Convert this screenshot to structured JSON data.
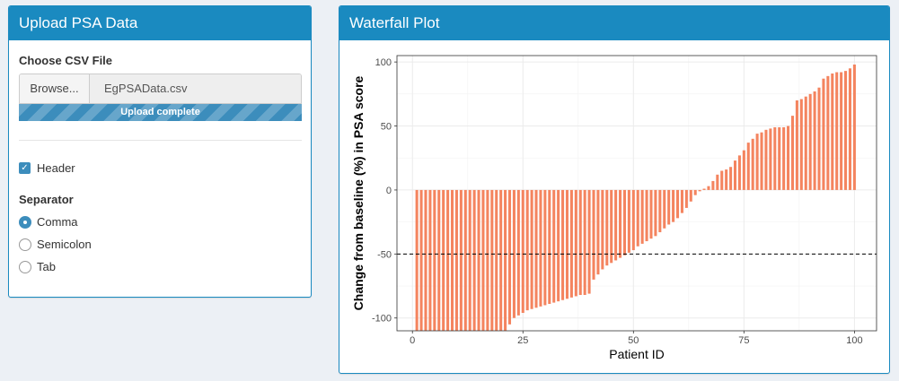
{
  "upload_panel": {
    "title": "Upload PSA Data",
    "file_label": "Choose CSV File",
    "browse_label": "Browse...",
    "file_name": "EgPSAData.csv",
    "progress_text": "Upload complete",
    "progress": 1.0,
    "header_label": "Header",
    "header_checked": true,
    "separator_label": "Separator",
    "separator_options": [
      "Comma",
      "Semicolon",
      "Tab"
    ],
    "separator_selected": "Comma"
  },
  "plot_panel": {
    "title": "Waterfall Plot"
  },
  "colors": {
    "header_bg": "#1a8ac0",
    "bar_fill": "#f4845f",
    "accent": "#3c8dbc"
  },
  "chart_data": {
    "type": "bar",
    "title": "",
    "xlabel": "Patient ID",
    "ylabel": "Change from baseline (%) in PSA score",
    "xlim": [
      -3.5,
      105
    ],
    "ylim": [
      -110,
      105
    ],
    "xticks": [
      0,
      25,
      50,
      75,
      100
    ],
    "yticks": [
      -100,
      -50,
      0,
      50,
      100
    ],
    "grid": true,
    "reference_line": -50,
    "x": [
      1,
      2,
      3,
      4,
      5,
      6,
      7,
      8,
      9,
      10,
      11,
      12,
      13,
      14,
      15,
      16,
      17,
      18,
      19,
      20,
      21,
      22,
      23,
      24,
      25,
      26,
      27,
      28,
      29,
      30,
      31,
      32,
      33,
      34,
      35,
      36,
      37,
      38,
      39,
      40,
      41,
      42,
      43,
      44,
      45,
      46,
      47,
      48,
      49,
      50,
      51,
      52,
      53,
      54,
      55,
      56,
      57,
      58,
      59,
      60,
      61,
      62,
      63,
      64,
      65,
      66,
      67,
      68,
      69,
      70,
      71,
      72,
      73,
      74,
      75,
      76,
      77,
      78,
      79,
      80,
      81,
      82,
      83,
      84,
      85,
      86,
      87,
      88,
      89,
      90,
      91,
      92,
      93,
      94,
      95,
      96,
      97,
      98,
      99,
      100
    ],
    "values": [
      -110,
      -110,
      -110,
      -110,
      -110,
      -110,
      -110,
      -110,
      -110,
      -110,
      -110,
      -110,
      -110,
      -110,
      -110,
      -110,
      -110,
      -110,
      -110,
      -110,
      -110,
      -105,
      -100,
      -98,
      -96,
      -94,
      -93,
      -92,
      -91,
      -90,
      -89,
      -88,
      -87,
      -86,
      -85,
      -84,
      -83,
      -82,
      -82,
      -81,
      -70,
      -66,
      -62,
      -59,
      -57,
      -55,
      -53,
      -51,
      -49,
      -47,
      -44,
      -42,
      -40,
      -38,
      -36,
      -33,
      -30,
      -27,
      -25,
      -22,
      -18,
      -14,
      -9,
      -4,
      -1,
      1,
      3,
      7,
      12,
      15,
      16,
      18,
      23,
      27,
      31,
      37,
      40,
      44,
      45,
      47,
      48,
      49,
      49,
      49,
      50,
      58,
      70,
      71,
      73,
      75,
      77,
      80,
      87,
      89,
      91,
      92,
      92,
      93,
      95,
      98
    ]
  }
}
